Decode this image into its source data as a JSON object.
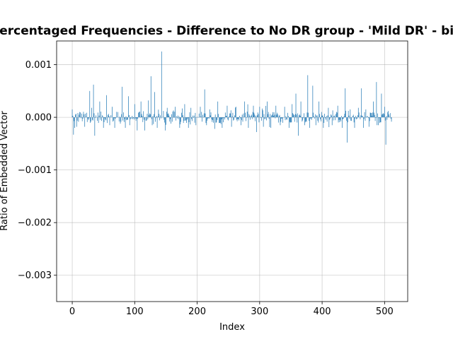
{
  "chart_data": {
    "type": "bar",
    "title": "Percentaged Frequencies - Difference to No DR group - 'Mild DR' - bin",
    "xlabel": "Index",
    "ylabel": "Ratio of Embedded Vector",
    "xlim": [
      -25,
      537
    ],
    "ylim": [
      -0.0035,
      0.00145
    ],
    "xticks": [
      0,
      100,
      200,
      300,
      400,
      500
    ],
    "xtick_labels": [
      "0",
      "100",
      "200",
      "300",
      "400",
      "500"
    ],
    "yticks": [
      0.001,
      0.0,
      -0.001,
      -0.002,
      -0.003
    ],
    "ytick_labels": [
      "0.001",
      "0.000",
      "−0.001",
      "−0.002",
      "−0.003"
    ],
    "grid": true,
    "bar_color": "#1f77b4",
    "n_bars": 512,
    "peaks": [
      {
        "x": 0,
        "y": 0.00015
      },
      {
        "x": 2,
        "y": -0.00033
      },
      {
        "x": 4,
        "y": -0.0002
      },
      {
        "x": 7,
        "y": -0.00018
      },
      {
        "x": 12,
        "y": 0.0001
      },
      {
        "x": 20,
        "y": -0.00018
      },
      {
        "x": 28,
        "y": 0.0005
      },
      {
        "x": 31,
        "y": 0.00018
      },
      {
        "x": 34,
        "y": 0.00062
      },
      {
        "x": 36,
        "y": -0.00035
      },
      {
        "x": 44,
        "y": 0.0003
      },
      {
        "x": 50,
        "y": -0.0002
      },
      {
        "x": 55,
        "y": 0.00042
      },
      {
        "x": 60,
        "y": -0.00015
      },
      {
        "x": 64,
        "y": 0.0002
      },
      {
        "x": 68,
        "y": -0.0002
      },
      {
        "x": 73,
        "y": 0.0001
      },
      {
        "x": 80,
        "y": 0.00058
      },
      {
        "x": 85,
        "y": -0.0002
      },
      {
        "x": 90,
        "y": 0.0004
      },
      {
        "x": 92,
        "y": -0.00015
      },
      {
        "x": 100,
        "y": 0.00025
      },
      {
        "x": 104,
        "y": -0.00025
      },
      {
        "x": 110,
        "y": 0.0003
      },
      {
        "x": 116,
        "y": -0.00025
      },
      {
        "x": 122,
        "y": 0.00032
      },
      {
        "x": 126,
        "y": 0.00078
      },
      {
        "x": 128,
        "y": -0.00015
      },
      {
        "x": 132,
        "y": 0.00048
      },
      {
        "x": 136,
        "y": -0.0002
      },
      {
        "x": 143,
        "y": 0.00125
      },
      {
        "x": 146,
        "y": 0.00012
      },
      {
        "x": 149,
        "y": -0.00025
      },
      {
        "x": 152,
        "y": 0.00018
      },
      {
        "x": 158,
        "y": -0.00012
      },
      {
        "x": 165,
        "y": 0.0002
      },
      {
        "x": 172,
        "y": -0.0002
      },
      {
        "x": 180,
        "y": 0.00025
      },
      {
        "x": 186,
        "y": -0.0002
      },
      {
        "x": 190,
        "y": 0.00018
      },
      {
        "x": 198,
        "y": -0.00015
      },
      {
        "x": 205,
        "y": 0.0002
      },
      {
        "x": 212,
        "y": 0.00053
      },
      {
        "x": 215,
        "y": -0.00015
      },
      {
        "x": 220,
        "y": 0.00015
      },
      {
        "x": 228,
        "y": -0.00022
      },
      {
        "x": 233,
        "y": 0.0003
      },
      {
        "x": 240,
        "y": -0.0002
      },
      {
        "x": 248,
        "y": 0.00022
      },
      {
        "x": 255,
        "y": -0.00018
      },
      {
        "x": 262,
        "y": 0.0002
      },
      {
        "x": 270,
        "y": -0.00015
      },
      {
        "x": 276,
        "y": 0.0003
      },
      {
        "x": 282,
        "y": -0.0002
      },
      {
        "x": 290,
        "y": 0.00022
      },
      {
        "x": 295,
        "y": -0.00028
      },
      {
        "x": 300,
        "y": 0.0002
      },
      {
        "x": 306,
        "y": -0.00018
      },
      {
        "x": 312,
        "y": 0.0003
      },
      {
        "x": 318,
        "y": -0.0002
      },
      {
        "x": 326,
        "y": 0.00022
      },
      {
        "x": 333,
        "y": -0.00015
      },
      {
        "x": 340,
        "y": 0.0002
      },
      {
        "x": 347,
        "y": -0.0002
      },
      {
        "x": 352,
        "y": 0.00025
      },
      {
        "x": 358,
        "y": 0.00045
      },
      {
        "x": 362,
        "y": -0.00035
      },
      {
        "x": 366,
        "y": 0.0003
      },
      {
        "x": 372,
        "y": -0.00015
      },
      {
        "x": 377,
        "y": 0.0008
      },
      {
        "x": 380,
        "y": -0.0002
      },
      {
        "x": 385,
        "y": 0.0006
      },
      {
        "x": 390,
        "y": -0.00015
      },
      {
        "x": 395,
        "y": 0.0003
      },
      {
        "x": 402,
        "y": -0.0002
      },
      {
        "x": 410,
        "y": 0.00018
      },
      {
        "x": 416,
        "y": -0.00015
      },
      {
        "x": 425,
        "y": 0.00022
      },
      {
        "x": 432,
        "y": -0.0002
      },
      {
        "x": 437,
        "y": 0.00055
      },
      {
        "x": 440,
        "y": -0.00048
      },
      {
        "x": 445,
        "y": 0.00015
      },
      {
        "x": 452,
        "y": -0.0002
      },
      {
        "x": 458,
        "y": 0.00018
      },
      {
        "x": 463,
        "y": 0.00055
      },
      {
        "x": 466,
        "y": -0.0002
      },
      {
        "x": 470,
        "y": 0.00015
      },
      {
        "x": 475,
        "y": -0.00018
      },
      {
        "x": 482,
        "y": 0.0003
      },
      {
        "x": 487,
        "y": 0.00067
      },
      {
        "x": 490,
        "y": -0.00015
      },
      {
        "x": 495,
        "y": 0.00045
      },
      {
        "x": 500,
        "y": 0.0002
      },
      {
        "x": 502,
        "y": -0.00052
      },
      {
        "x": 506,
        "y": 0.00012
      },
      {
        "x": 509,
        "y": 8e-05
      }
    ]
  }
}
